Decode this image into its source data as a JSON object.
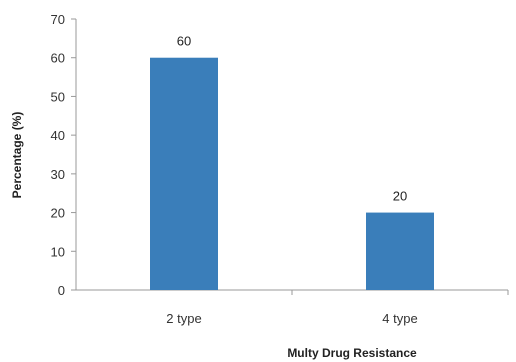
{
  "chart_data": {
    "type": "bar",
    "categories": [
      "2 type",
      "4 type"
    ],
    "values": [
      60,
      20
    ],
    "data_labels": [
      "60",
      "20"
    ],
    "title": "",
    "xlabel": "Multy Drug Resistance",
    "ylabel": "Percentage (%)",
    "ylim": [
      0,
      70
    ],
    "yticks": [
      0,
      10,
      20,
      30,
      40,
      50,
      60,
      70
    ],
    "grid": false,
    "legend": "none",
    "bar_color": "#3A7EBA"
  }
}
